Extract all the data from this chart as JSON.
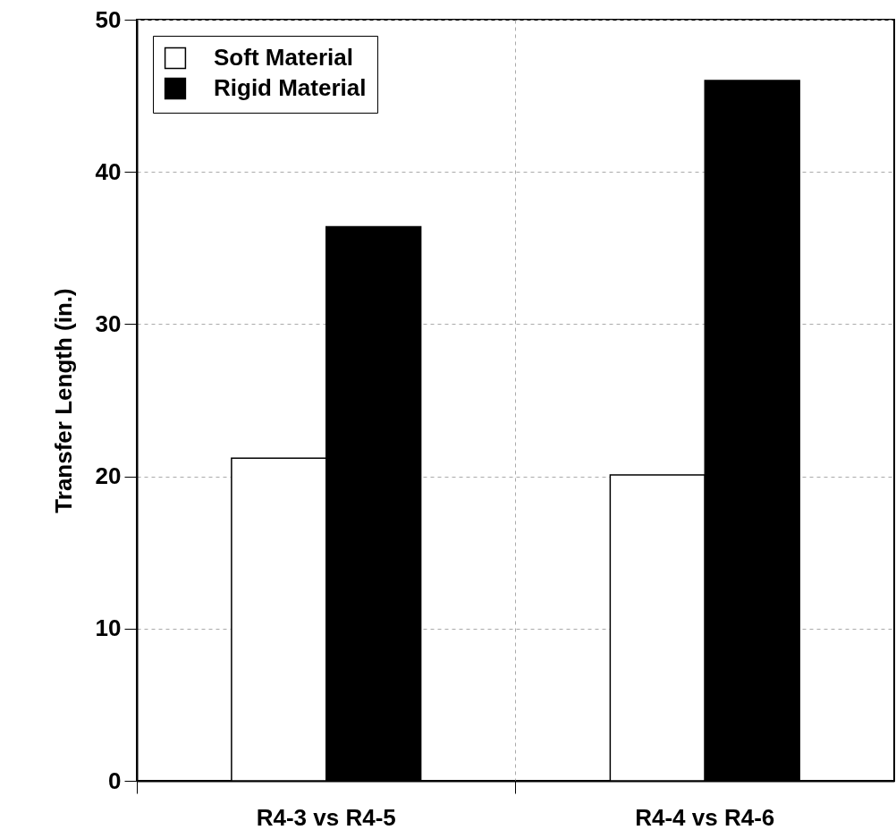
{
  "chart_data": {
    "type": "bar",
    "ylabel": "Transfer Length (in.)",
    "categories": [
      "R4-3 vs R4-5",
      "R4-4 vs R4-6"
    ],
    "series": [
      {
        "name": "Soft Material",
        "color": "#ffffff",
        "values": [
          21.2,
          20.1
        ]
      },
      {
        "name": "Rigid Material",
        "color": "#000000",
        "values": [
          36.4,
          46.0
        ]
      }
    ],
    "ylim": [
      0,
      50
    ],
    "yticks": [
      0,
      10,
      20,
      30,
      40,
      50
    ],
    "grid": true,
    "legend": "top left"
  }
}
